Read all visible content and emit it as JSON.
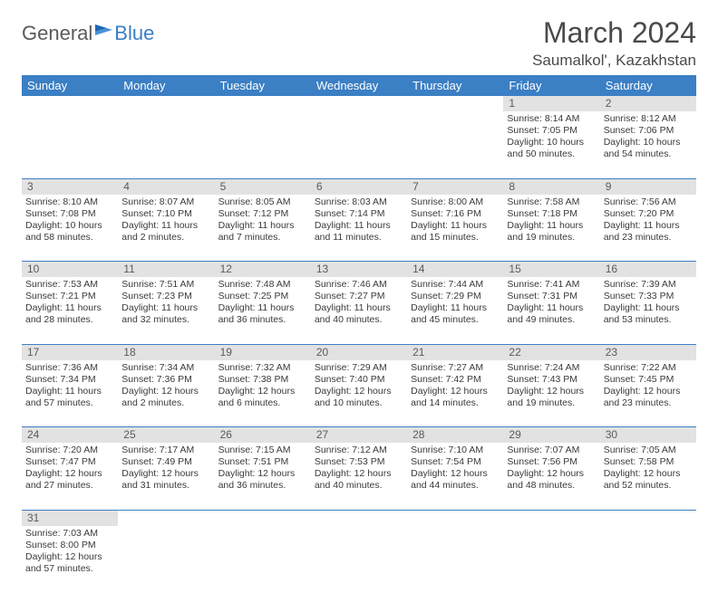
{
  "logo": {
    "text1": "General",
    "text2": "Blue"
  },
  "title": "March 2024",
  "location": "Saumalkol', Kazakhstan",
  "colors": {
    "header_bg": "#3b7fc4",
    "header_text": "#ffffff",
    "daynum_bg": "#e2e2e2",
    "row_border": "#3b7fc4",
    "body_text": "#3a3a3a",
    "title_text": "#4a4a4a",
    "logo_gray": "#5a5a5a",
    "logo_blue": "#3b7fc4",
    "page_bg": "#ffffff"
  },
  "weekdays": [
    "Sunday",
    "Monday",
    "Tuesday",
    "Wednesday",
    "Thursday",
    "Friday",
    "Saturday"
  ],
  "days": {
    "1": {
      "sunrise": "8:14 AM",
      "sunset": "7:05 PM",
      "dl_h": 10,
      "dl_m": 50
    },
    "2": {
      "sunrise": "8:12 AM",
      "sunset": "7:06 PM",
      "dl_h": 10,
      "dl_m": 54
    },
    "3": {
      "sunrise": "8:10 AM",
      "sunset": "7:08 PM",
      "dl_h": 10,
      "dl_m": 58
    },
    "4": {
      "sunrise": "8:07 AM",
      "sunset": "7:10 PM",
      "dl_h": 11,
      "dl_m": 2
    },
    "5": {
      "sunrise": "8:05 AM",
      "sunset": "7:12 PM",
      "dl_h": 11,
      "dl_m": 7
    },
    "6": {
      "sunrise": "8:03 AM",
      "sunset": "7:14 PM",
      "dl_h": 11,
      "dl_m": 11
    },
    "7": {
      "sunrise": "8:00 AM",
      "sunset": "7:16 PM",
      "dl_h": 11,
      "dl_m": 15
    },
    "8": {
      "sunrise": "7:58 AM",
      "sunset": "7:18 PM",
      "dl_h": 11,
      "dl_m": 19
    },
    "9": {
      "sunrise": "7:56 AM",
      "sunset": "7:20 PM",
      "dl_h": 11,
      "dl_m": 23
    },
    "10": {
      "sunrise": "7:53 AM",
      "sunset": "7:21 PM",
      "dl_h": 11,
      "dl_m": 28
    },
    "11": {
      "sunrise": "7:51 AM",
      "sunset": "7:23 PM",
      "dl_h": 11,
      "dl_m": 32
    },
    "12": {
      "sunrise": "7:48 AM",
      "sunset": "7:25 PM",
      "dl_h": 11,
      "dl_m": 36
    },
    "13": {
      "sunrise": "7:46 AM",
      "sunset": "7:27 PM",
      "dl_h": 11,
      "dl_m": 40
    },
    "14": {
      "sunrise": "7:44 AM",
      "sunset": "7:29 PM",
      "dl_h": 11,
      "dl_m": 45
    },
    "15": {
      "sunrise": "7:41 AM",
      "sunset": "7:31 PM",
      "dl_h": 11,
      "dl_m": 49
    },
    "16": {
      "sunrise": "7:39 AM",
      "sunset": "7:33 PM",
      "dl_h": 11,
      "dl_m": 53
    },
    "17": {
      "sunrise": "7:36 AM",
      "sunset": "7:34 PM",
      "dl_h": 11,
      "dl_m": 57
    },
    "18": {
      "sunrise": "7:34 AM",
      "sunset": "7:36 PM",
      "dl_h": 12,
      "dl_m": 2
    },
    "19": {
      "sunrise": "7:32 AM",
      "sunset": "7:38 PM",
      "dl_h": 12,
      "dl_m": 6
    },
    "20": {
      "sunrise": "7:29 AM",
      "sunset": "7:40 PM",
      "dl_h": 12,
      "dl_m": 10
    },
    "21": {
      "sunrise": "7:27 AM",
      "sunset": "7:42 PM",
      "dl_h": 12,
      "dl_m": 14
    },
    "22": {
      "sunrise": "7:24 AM",
      "sunset": "7:43 PM",
      "dl_h": 12,
      "dl_m": 19
    },
    "23": {
      "sunrise": "7:22 AM",
      "sunset": "7:45 PM",
      "dl_h": 12,
      "dl_m": 23
    },
    "24": {
      "sunrise": "7:20 AM",
      "sunset": "7:47 PM",
      "dl_h": 12,
      "dl_m": 27
    },
    "25": {
      "sunrise": "7:17 AM",
      "sunset": "7:49 PM",
      "dl_h": 12,
      "dl_m": 31
    },
    "26": {
      "sunrise": "7:15 AM",
      "sunset": "7:51 PM",
      "dl_h": 12,
      "dl_m": 36
    },
    "27": {
      "sunrise": "7:12 AM",
      "sunset": "7:53 PM",
      "dl_h": 12,
      "dl_m": 40
    },
    "28": {
      "sunrise": "7:10 AM",
      "sunset": "7:54 PM",
      "dl_h": 12,
      "dl_m": 44
    },
    "29": {
      "sunrise": "7:07 AM",
      "sunset": "7:56 PM",
      "dl_h": 12,
      "dl_m": 48
    },
    "30": {
      "sunrise": "7:05 AM",
      "sunset": "7:58 PM",
      "dl_h": 12,
      "dl_m": 52
    },
    "31": {
      "sunrise": "7:03 AM",
      "sunset": "8:00 PM",
      "dl_h": 12,
      "dl_m": 57
    }
  },
  "grid": [
    [
      null,
      null,
      null,
      null,
      null,
      "1",
      "2"
    ],
    [
      "3",
      "4",
      "5",
      "6",
      "7",
      "8",
      "9"
    ],
    [
      "10",
      "11",
      "12",
      "13",
      "14",
      "15",
      "16"
    ],
    [
      "17",
      "18",
      "19",
      "20",
      "21",
      "22",
      "23"
    ],
    [
      "24",
      "25",
      "26",
      "27",
      "28",
      "29",
      "30"
    ],
    [
      "31",
      null,
      null,
      null,
      null,
      null,
      null
    ]
  ],
  "labels": {
    "sunrise": "Sunrise: ",
    "sunset": "Sunset: ",
    "daylight1": "Daylight: ",
    "hours_and": " hours and ",
    "minutes": " minutes."
  }
}
